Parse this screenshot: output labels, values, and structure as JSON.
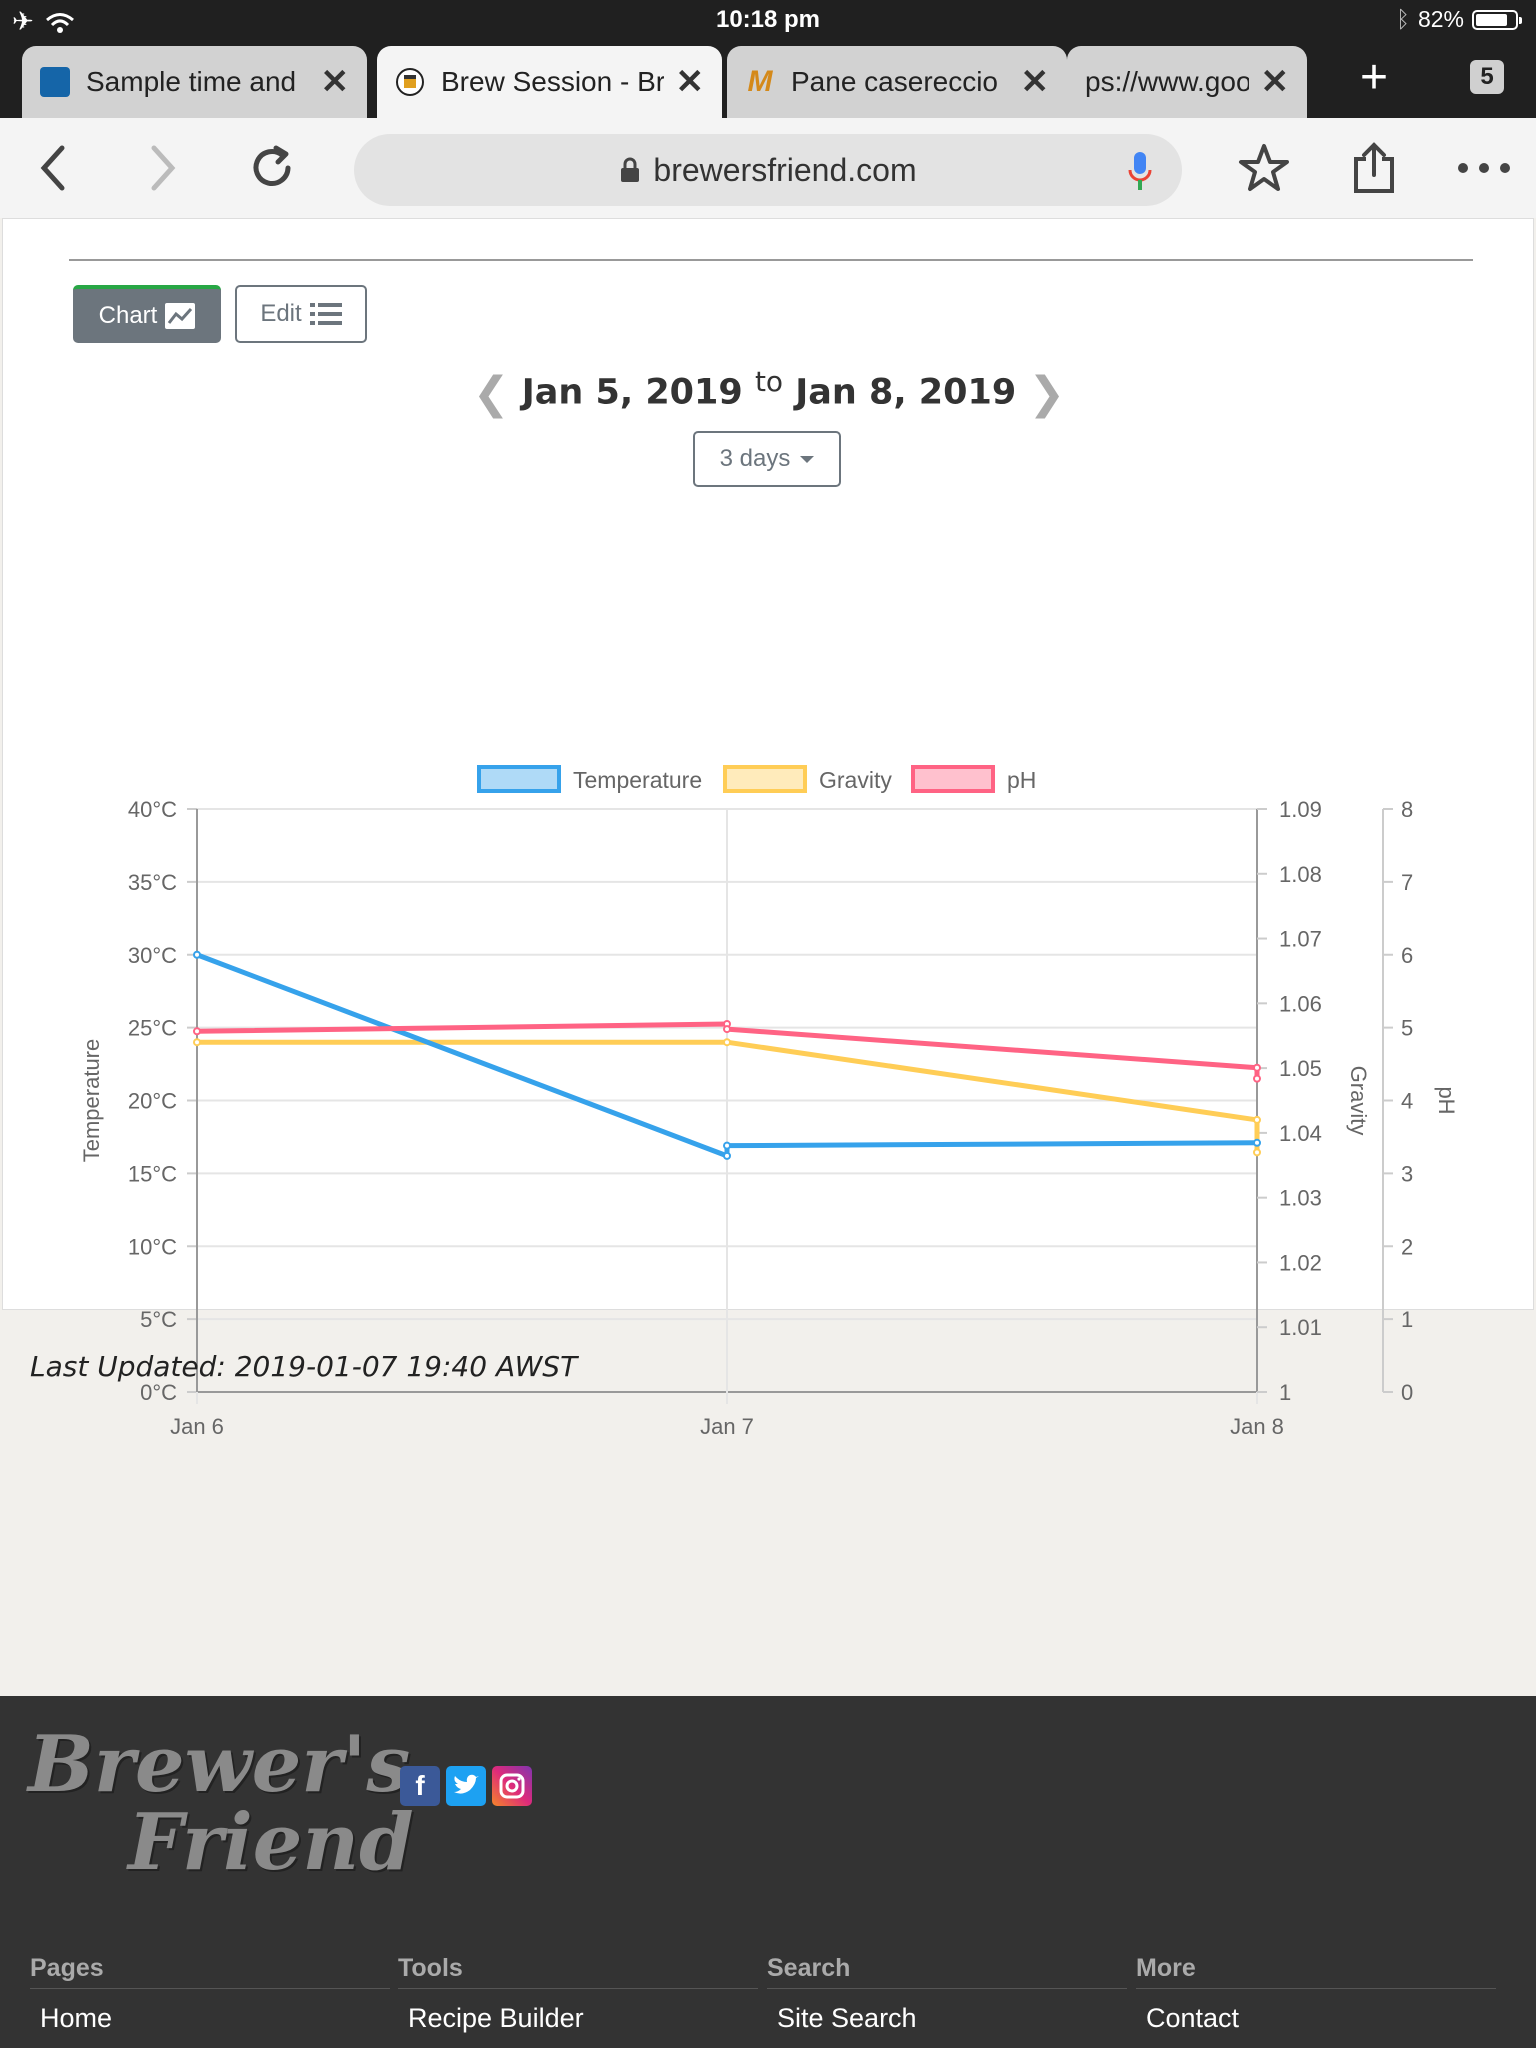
{
  "status": {
    "time": "10:18 pm",
    "battery": "82%",
    "battery_level": 0.82
  },
  "tabs": [
    {
      "title": "Sample time and",
      "icon": "sample-site-favicon-icon"
    },
    {
      "title": "Brew Session - Br",
      "icon": "brewers-friend-favicon-icon",
      "active": true
    },
    {
      "title": "Pane casereccio",
      "icon": "m-favicon-icon"
    },
    {
      "title": "ps://www.goo",
      "icon": "none"
    }
  ],
  "tab_count": "5",
  "address": {
    "url": "brewersfriend.com"
  },
  "view_buttons": {
    "chart": "Chart",
    "edit": "Edit"
  },
  "date_range": {
    "from": "Jan 5, 2019",
    "to_word": "to",
    "to": "Jan 8, 2019",
    "period": "3 days"
  },
  "chart_data": {
    "type": "line",
    "x": [
      "Jan 6",
      "Jan 7",
      "Jan 8"
    ],
    "series": [
      {
        "name": "Temperature",
        "color": "#36a2eb",
        "axis": "y1",
        "points": [
          [
            "Jan 6",
            30
          ],
          [
            "Jan 7",
            16.2
          ],
          [
            "Jan 7",
            16.9
          ],
          [
            "Jan 8",
            17.1
          ]
        ]
      },
      {
        "name": "Gravity",
        "color": "#ffcd56",
        "axis": "y2",
        "points": [
          [
            "Jan 6",
            1.054
          ],
          [
            "Jan 7",
            1.054
          ],
          [
            "Jan 8",
            1.042
          ],
          [
            "Jan 8",
            1.037
          ]
        ]
      },
      {
        "name": "pH",
        "color": "#ff6384",
        "axis": "y3",
        "points": [
          [
            "Jan 6",
            4.95
          ],
          [
            "Jan 7",
            5.05
          ],
          [
            "Jan 7",
            4.98
          ],
          [
            "Jan 8",
            4.45
          ],
          [
            "Jan 8",
            4.3
          ]
        ]
      }
    ],
    "axes": {
      "y1": {
        "label": "Temperature",
        "range": [
          0,
          40
        ],
        "ticks": [
          "0°C",
          "5°C",
          "10°C",
          "15°C",
          "20°C",
          "25°C",
          "30°C",
          "35°C",
          "40°C"
        ]
      },
      "y2": {
        "label": "Gravity",
        "range": [
          1,
          1.09
        ],
        "ticks": [
          "1",
          "1.01",
          "1.02",
          "1.03",
          "1.04",
          "1.05",
          "1.06",
          "1.07",
          "1.08",
          "1.09"
        ]
      },
      "y3": {
        "label": "pH",
        "range": [
          0,
          8
        ],
        "ticks": [
          "0",
          "1",
          "2",
          "3",
          "4",
          "5",
          "6",
          "7",
          "8"
        ]
      }
    },
    "legend": "top",
    "grid": true
  },
  "last_updated": "Last Updated: 2019-01-07 19:40 AWST",
  "footer": {
    "logo_line1": "Brewer's",
    "logo_line2": "Friend",
    "columns": [
      {
        "heading": "Pages",
        "item": "Home"
      },
      {
        "heading": "Tools",
        "item": "Recipe Builder"
      },
      {
        "heading": "Search",
        "item": "Site Search"
      },
      {
        "heading": "More",
        "item": "Contact"
      }
    ]
  }
}
